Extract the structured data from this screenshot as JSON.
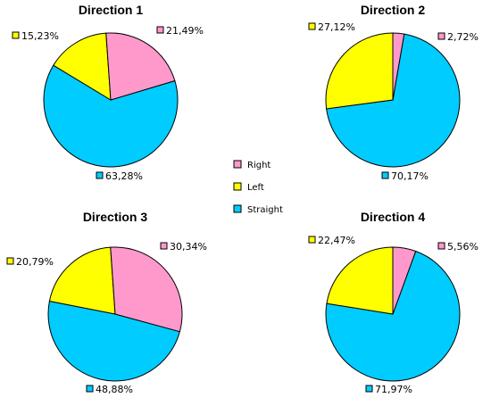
{
  "colors": {
    "Right": "#ff99cc",
    "Left": "#ffff00",
    "Straight": "#00ccff"
  },
  "legend": {
    "items": [
      "Right",
      "Left",
      "Straight"
    ]
  },
  "chart_data": [
    {
      "type": "pie",
      "title": "Direction 1",
      "categories": [
        "Right",
        "Left",
        "Straight"
      ],
      "values": [
        21.49,
        15.23,
        63.28
      ],
      "value_labels": [
        "21,49%",
        "15,23%",
        "63,28%"
      ]
    },
    {
      "type": "pie",
      "title": "Direction 2",
      "categories": [
        "Right",
        "Left",
        "Straight"
      ],
      "values": [
        2.72,
        27.12,
        70.17
      ],
      "value_labels": [
        "2,72%",
        "27,12%",
        "70,17%"
      ]
    },
    {
      "type": "pie",
      "title": "Direction 3",
      "categories": [
        "Right",
        "Left",
        "Straight"
      ],
      "values": [
        30.34,
        20.79,
        48.88
      ],
      "value_labels": [
        "30,34%",
        "20,79%",
        "48,88%"
      ]
    },
    {
      "type": "pie",
      "title": "Direction 4",
      "categories": [
        "Right",
        "Left",
        "Straight"
      ],
      "values": [
        5.56,
        22.47,
        71.97
      ],
      "value_labels": [
        "5,56%",
        "22,47%",
        "71,97%"
      ]
    }
  ]
}
